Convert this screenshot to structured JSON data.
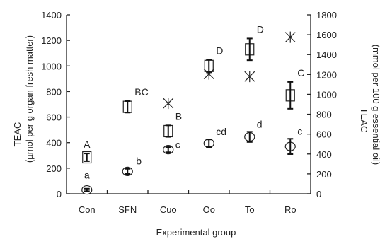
{
  "chart_data": {
    "type": "scatter",
    "xlabel": "Experimental group",
    "ylabel_left": [
      "TEAC",
      "(µmol per g organ fresh matter)"
    ],
    "ylabel_right": [
      "TEAC",
      "(mmol per 100 g essential oil)"
    ],
    "categories": [
      "Con",
      "SFN",
      "Cuo",
      "Oo",
      "To",
      "Ro"
    ],
    "ylim_left": [
      0,
      1400
    ],
    "yticks_left": [
      0,
      200,
      400,
      600,
      800,
      1000,
      1200,
      1400
    ],
    "ylim_right": [
      0,
      1800
    ],
    "yticks_right": [
      0,
      200,
      400,
      600,
      800,
      1000,
      1200,
      1400,
      1600,
      1800
    ],
    "grid": false,
    "series": [
      {
        "marker": "square",
        "axis": "left",
        "values": [
          285,
          680,
          490,
          1000,
          1130,
          770
        ],
        "errors": [
          30,
          45,
          45,
          50,
          85,
          105
        ],
        "labels": [
          "A",
          "BC",
          "B",
          "D",
          "D",
          "C"
        ]
      },
      {
        "marker": "circle",
        "axis": "left",
        "values": [
          30,
          175,
          345,
          395,
          445,
          370
        ],
        "errors": [
          10,
          20,
          20,
          30,
          40,
          60
        ],
        "labels": [
          "a",
          "b",
          "c",
          "cd",
          "d",
          "c"
        ]
      },
      {
        "marker": "asterisk",
        "axis": "right",
        "values": [
          null,
          null,
          910,
          1205,
          1180,
          1575
        ]
      }
    ]
  }
}
